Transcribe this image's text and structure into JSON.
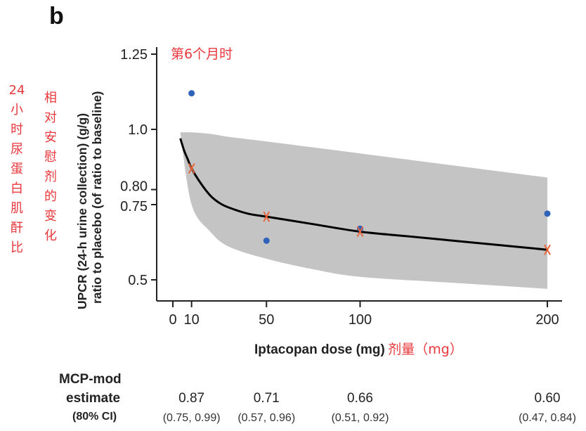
{
  "panel_letter": "b",
  "annotations": {
    "top_cn": "第6个月时",
    "left_cn_col1": [
      "24",
      "小",
      "时",
      "尿",
      "蛋",
      "白",
      "肌",
      "酐",
      "比"
    ],
    "left_cn_col2": [
      "相",
      "对",
      "安",
      "慰",
      "剂",
      "的",
      "变",
      "化"
    ],
    "xlabel_cn": "剂量（mg）"
  },
  "colors": {
    "observed": "#2f62b8",
    "estimate_marker": "#e8643a",
    "band": "#c4c4c4",
    "curve": "#000000",
    "annotation": "#e8383d"
  },
  "table": {
    "row1_label": "MCP-mod",
    "row2_label": "estimate",
    "row3_label": "(80% CI)",
    "columns": [
      {
        "dose": 10,
        "estimate": "0.87",
        "ci": "(0.75, 0.99)"
      },
      {
        "dose": 50,
        "estimate": "0.71",
        "ci": "(0.57, 0.96)"
      },
      {
        "dose": 100,
        "estimate": "0.66",
        "ci": "(0.51, 0.92)"
      },
      {
        "dose": 200,
        "estimate": "0.60",
        "ci": "(0.47, 0.84)"
      }
    ]
  },
  "chart_data": {
    "type": "line",
    "title": "",
    "xlabel": "Iptacopan dose (mg)",
    "ylabel_line1": "UPCR (24-h urine collection) (g/g)",
    "ylabel_line2": "ratio to placebo (of ratio to baseline)",
    "x_ticks": [
      0,
      10,
      50,
      100,
      200
    ],
    "x_tick_labels": [
      "0",
      "10",
      "50",
      "100",
      "200"
    ],
    "y_ticks": [
      0.5,
      0.75,
      0.8,
      1.0,
      1.25
    ],
    "y_tick_labels": [
      "0.5",
      "0.75",
      "0.80",
      "1.0",
      "1.25"
    ],
    "xlim": [
      -8,
      208
    ],
    "ylim": [
      0.43,
      1.27
    ],
    "grid": false,
    "series": [
      {
        "name": "MCP-mod fitted curve",
        "kind": "line",
        "x": [
          4,
          6,
          8,
          10,
          15,
          20,
          25,
          30,
          40,
          50,
          60,
          75,
          100,
          125,
          150,
          175,
          200
        ],
        "y": [
          0.97,
          0.93,
          0.9,
          0.87,
          0.82,
          0.78,
          0.755,
          0.74,
          0.72,
          0.71,
          0.7,
          0.685,
          0.66,
          0.645,
          0.63,
          0.615,
          0.6
        ]
      },
      {
        "name": "80% CI band",
        "kind": "band",
        "x": [
          4,
          10,
          20,
          30,
          50,
          75,
          100,
          150,
          200
        ],
        "lower": [
          0.99,
          0.75,
          0.66,
          0.61,
          0.57,
          0.535,
          0.51,
          0.49,
          0.47
        ],
        "upper": [
          0.99,
          0.99,
          0.985,
          0.975,
          0.96,
          0.94,
          0.92,
          0.88,
          0.84
        ]
      },
      {
        "name": "MCP-mod estimate",
        "kind": "marker-x",
        "x": [
          10,
          50,
          100,
          200
        ],
        "y": [
          0.87,
          0.71,
          0.66,
          0.6
        ]
      },
      {
        "name": "Observed",
        "kind": "marker-dot",
        "x": [
          10,
          50,
          100,
          200
        ],
        "y": [
          1.12,
          0.63,
          0.67,
          0.72
        ]
      }
    ]
  }
}
